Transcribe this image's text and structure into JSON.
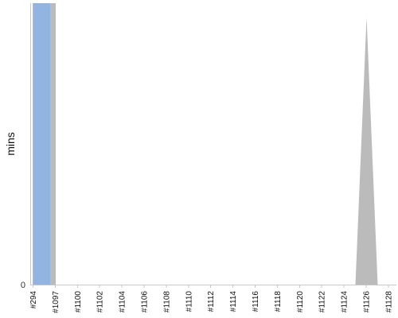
{
  "chart_data": {
    "type": "area",
    "title": "",
    "xlabel": "",
    "ylabel": "mins",
    "categories": [
      "#294",
      "#1097",
      "#1100",
      "#1102",
      "#1104",
      "#1106",
      "#1108",
      "#1110",
      "#1112",
      "#1114",
      "#1116",
      "#1118",
      "#1120",
      "#1122",
      "#1124",
      "#1126",
      "#1128"
    ],
    "ylim": [
      0,
      100
    ],
    "y_ticks": [
      0
    ],
    "grid": false,
    "legend": "none",
    "series": [
      {
        "color": "#bbbbbb",
        "values": [
          100,
          100,
          0,
          0,
          0,
          0,
          0,
          0,
          0,
          0,
          0,
          0,
          0,
          0,
          0,
          95,
          0
        ]
      },
      {
        "color": "#92b4e0",
        "values": [
          100,
          100,
          0,
          0,
          0,
          0,
          0,
          0,
          0,
          0,
          0,
          0,
          0,
          0,
          0,
          0,
          0
        ]
      }
    ]
  }
}
